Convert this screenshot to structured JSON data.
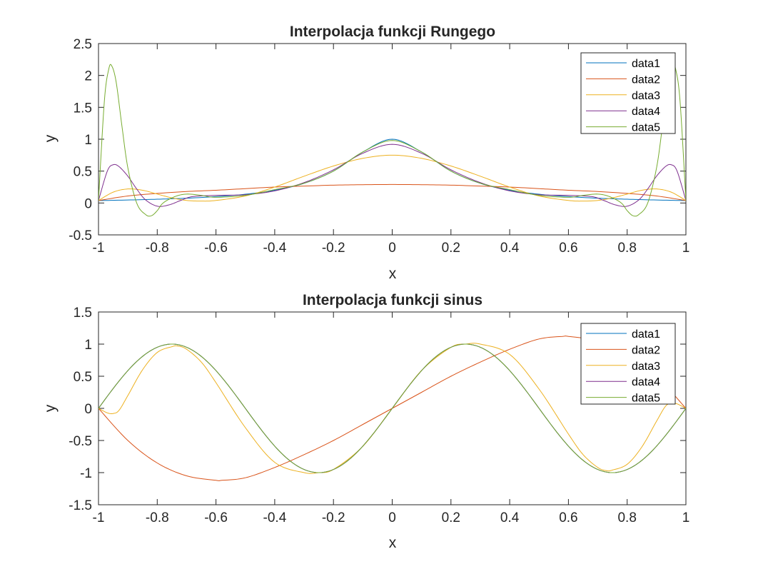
{
  "colors": {
    "background": "#ffffff",
    "axes": "#262626",
    "series": [
      "#0072bd",
      "#d95319",
      "#edb120",
      "#7e2f8e",
      "#77ac30"
    ]
  },
  "chart_data": [
    {
      "type": "line",
      "title": "Interpolacja funkcji Rungego",
      "xlabel": "x",
      "ylabel": "y",
      "xlim": [
        -1,
        1
      ],
      "ylim": [
        -0.5,
        2.5
      ],
      "xticks": [
        "-1",
        "-0.8",
        "-0.6",
        "-0.4",
        "-0.2",
        "0",
        "0.2",
        "0.4",
        "0.6",
        "0.8",
        "1"
      ],
      "yticks": [
        "-0.5",
        "0",
        "0.5",
        "1",
        "1.5",
        "2",
        "2.5"
      ],
      "grid": false,
      "legend_position": "top-right",
      "series": [
        {
          "name": "data1",
          "x": [
            -1,
            -0.9,
            -0.8,
            -0.7,
            -0.6,
            -0.5,
            -0.4,
            -0.3,
            -0.2,
            -0.1,
            0,
            0.1,
            0.2,
            0.3,
            0.4,
            0.5,
            0.6,
            0.7,
            0.8,
            0.9,
            1
          ],
          "y": [
            0.038,
            0.047,
            0.059,
            0.075,
            0.1,
            0.138,
            0.2,
            0.308,
            0.5,
            0.8,
            1.0,
            0.8,
            0.5,
            0.308,
            0.2,
            0.138,
            0.1,
            0.075,
            0.059,
            0.047,
            0.038
          ]
        },
        {
          "name": "data2",
          "x": [
            -1,
            -0.9,
            -0.8,
            -0.7,
            -0.6,
            -0.5,
            -0.4,
            -0.3,
            -0.2,
            -0.1,
            0,
            0.1,
            0.2,
            0.3,
            0.4,
            0.5,
            0.6,
            0.7,
            0.8,
            0.9,
            1
          ],
          "y": [
            0.038,
            0.11,
            0.15,
            0.18,
            0.2,
            0.225,
            0.25,
            0.265,
            0.28,
            0.287,
            0.29,
            0.287,
            0.28,
            0.265,
            0.25,
            0.225,
            0.2,
            0.18,
            0.15,
            0.11,
            0.038
          ]
        },
        {
          "name": "data3",
          "x": [
            -1,
            -0.95,
            -0.9,
            -0.85,
            -0.8,
            -0.75,
            -0.7,
            -0.65,
            -0.6,
            -0.5,
            -0.4,
            -0.3,
            -0.2,
            -0.1,
            0,
            0.1,
            0.2,
            0.3,
            0.4,
            0.5,
            0.6,
            0.65,
            0.7,
            0.75,
            0.8,
            0.85,
            0.9,
            0.95,
            1
          ],
          "y": [
            0.038,
            0.17,
            0.22,
            0.2,
            0.14,
            0.08,
            0.04,
            0.03,
            0.04,
            0.11,
            0.25,
            0.42,
            0.58,
            0.7,
            0.75,
            0.7,
            0.58,
            0.42,
            0.25,
            0.11,
            0.04,
            0.03,
            0.04,
            0.08,
            0.14,
            0.2,
            0.22,
            0.17,
            0.038
          ]
        },
        {
          "name": "data4",
          "x": [
            -1,
            -0.97,
            -0.95,
            -0.93,
            -0.9,
            -0.87,
            -0.84,
            -0.8,
            -0.76,
            -0.72,
            -0.68,
            -0.6,
            -0.5,
            -0.4,
            -0.3,
            -0.2,
            -0.1,
            0,
            0.1,
            0.2,
            0.3,
            0.4,
            0.5,
            0.6,
            0.68,
            0.72,
            0.76,
            0.8,
            0.84,
            0.87,
            0.9,
            0.93,
            0.95,
            0.97,
            1
          ],
          "y": [
            0.038,
            0.5,
            0.6,
            0.57,
            0.42,
            0.22,
            0.05,
            -0.05,
            -0.03,
            0.04,
            0.1,
            0.12,
            0.13,
            0.19,
            0.32,
            0.52,
            0.78,
            0.92,
            0.78,
            0.52,
            0.32,
            0.19,
            0.13,
            0.12,
            0.1,
            0.04,
            -0.03,
            -0.05,
            0.05,
            0.22,
            0.42,
            0.57,
            0.6,
            0.5,
            0.038
          ]
        },
        {
          "name": "data5",
          "x": [
            -1,
            -0.98,
            -0.965,
            -0.955,
            -0.94,
            -0.92,
            -0.9,
            -0.87,
            -0.84,
            -0.82,
            -0.8,
            -0.78,
            -0.74,
            -0.7,
            -0.65,
            -0.6,
            -0.5,
            -0.4,
            -0.3,
            -0.2,
            -0.1,
            0,
            0.1,
            0.2,
            0.3,
            0.4,
            0.5,
            0.6,
            0.65,
            0.7,
            0.74,
            0.78,
            0.8,
            0.82,
            0.84,
            0.87,
            0.9,
            0.92,
            0.94,
            0.955,
            0.965,
            0.98,
            1
          ],
          "y": [
            0.038,
            1.6,
            2.1,
            2.15,
            1.9,
            1.2,
            0.55,
            0.0,
            -0.18,
            -0.2,
            -0.12,
            0.0,
            0.1,
            0.14,
            0.12,
            0.09,
            0.12,
            0.21,
            0.31,
            0.5,
            0.8,
            0.98,
            0.8,
            0.5,
            0.31,
            0.21,
            0.12,
            0.09,
            0.12,
            0.14,
            0.1,
            0.0,
            -0.12,
            -0.2,
            -0.18,
            0.0,
            0.55,
            1.2,
            1.9,
            2.15,
            2.1,
            1.6,
            0.038
          ]
        }
      ]
    },
    {
      "type": "line",
      "title": "Interpolacja funkcji sinus",
      "xlabel": "x",
      "ylabel": "y",
      "xlim": [
        -1,
        1
      ],
      "ylim": [
        -1.5,
        1.5
      ],
      "xticks": [
        "-1",
        "-0.8",
        "-0.6",
        "-0.4",
        "-0.2",
        "0",
        "0.2",
        "0.4",
        "0.6",
        "0.8",
        "1"
      ],
      "yticks": [
        "-1.5",
        "-1",
        "-0.5",
        "0",
        "0.5",
        "1",
        "1.5"
      ],
      "grid": false,
      "legend_position": "top-right",
      "series": [
        {
          "name": "data1",
          "function": "sin(2*pi*x)",
          "x_range": [
            -1,
            1
          ]
        },
        {
          "name": "data2",
          "x": [
            -1,
            -0.9,
            -0.8,
            -0.7,
            -0.6,
            -0.58,
            -0.5,
            -0.4,
            -0.3,
            -0.2,
            -0.1,
            0,
            0.1,
            0.2,
            0.3,
            0.4,
            0.5,
            0.58,
            0.6,
            0.7,
            0.8,
            0.9,
            1
          ],
          "y": [
            0.0,
            -0.5,
            -0.85,
            -1.05,
            -1.12,
            -1.12,
            -1.08,
            -0.92,
            -0.72,
            -0.5,
            -0.25,
            0.0,
            0.25,
            0.5,
            0.72,
            0.92,
            1.08,
            1.12,
            1.12,
            1.05,
            0.85,
            0.5,
            0.0
          ]
        },
        {
          "name": "data3",
          "x": [
            -1,
            -0.97,
            -0.95,
            -0.93,
            -0.9,
            -0.85,
            -0.8,
            -0.75,
            -0.73,
            -0.7,
            -0.65,
            -0.6,
            -0.5,
            -0.4,
            -0.3,
            -0.25,
            -0.2,
            -0.1,
            0,
            0.1,
            0.2,
            0.25,
            0.3,
            0.4,
            0.5,
            0.6,
            0.65,
            0.7,
            0.73,
            0.75,
            0.8,
            0.85,
            0.9,
            0.93,
            0.95,
            0.97,
            1
          ],
          "y": [
            0.0,
            -0.07,
            -0.08,
            -0.03,
            0.2,
            0.6,
            0.87,
            0.96,
            0.97,
            0.92,
            0.72,
            0.4,
            -0.3,
            -0.84,
            -1.0,
            -1.0,
            -0.95,
            -0.59,
            0.0,
            0.59,
            0.95,
            1.0,
            1.0,
            0.84,
            0.3,
            -0.4,
            -0.72,
            -0.92,
            -0.97,
            -0.96,
            -0.87,
            -0.6,
            -0.2,
            0.03,
            0.08,
            0.07,
            0.0
          ]
        },
        {
          "name": "data4",
          "function": "sin(2*pi*x)",
          "x_range": [
            -1,
            1
          ]
        },
        {
          "name": "data5",
          "function": "sin(2*pi*x)",
          "x_range": [
            -1,
            1
          ]
        }
      ]
    }
  ]
}
